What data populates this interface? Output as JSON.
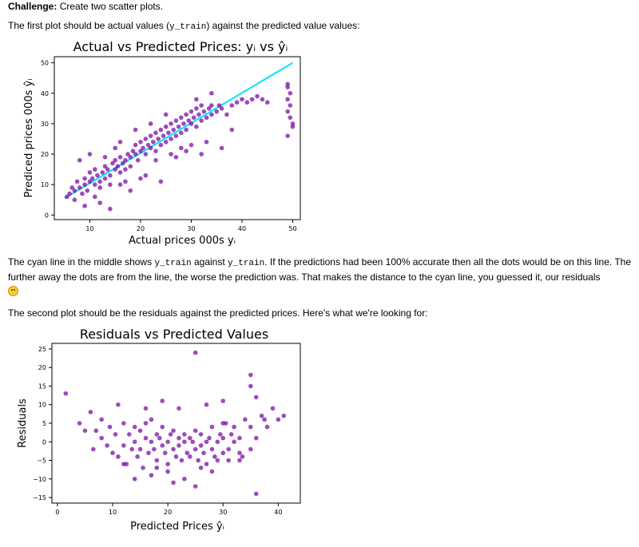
{
  "intro": {
    "challenge_label": "Challenge:",
    "challenge_text": "Create two scatter plots.",
    "first_plot_pre": "The first plot should be actual values (",
    "first_plot_code": "y_train",
    "first_plot_post": ") against the predicted value values:"
  },
  "explanation": {
    "t1": "The cyan line in the middle shows ",
    "c1": "y_train",
    "t2": " against ",
    "c2": "y_train",
    "t3": ". If the predictions had been 100% accurate then all the dots would be on this line. The further away the dots are from the line, the worse the prediction was. That makes the distance to the cyan line, you guessed it, our residuals",
    "emoji": "smiling-face-icon"
  },
  "second_intro": "The second plot should be the residuals against the predicted prices. Here's what we're looking for:",
  "colors": {
    "points": "#7b0fa6",
    "line": "#00e5ff"
  },
  "chart_data": [
    {
      "type": "scatter",
      "title": "Actual vs Predicted Prices: yᵢ vs ŷᵢ",
      "xlabel": "Actual prices 000s yᵢ",
      "ylabel": "Prediced prices 000s ŷᵢ",
      "xticks": [
        10,
        20,
        30,
        40,
        50
      ],
      "yticks": [
        0,
        10,
        20,
        30,
        40,
        50
      ],
      "xlim": [
        3,
        51.5
      ],
      "ylim": [
        -1.5,
        52
      ],
      "line": {
        "x": [
          5,
          50
        ],
        "y": [
          5.5,
          50
        ]
      },
      "points": [
        [
          5.5,
          6
        ],
        [
          6,
          7
        ],
        [
          6.5,
          9
        ],
        [
          7,
          8
        ],
        [
          7,
          5
        ],
        [
          7.5,
          11
        ],
        [
          8,
          9
        ],
        [
          8.5,
          7
        ],
        [
          9,
          12
        ],
        [
          9,
          10
        ],
        [
          9.5,
          8
        ],
        [
          10,
          11
        ],
        [
          10,
          14
        ],
        [
          10.5,
          12
        ],
        [
          11,
          10
        ],
        [
          11,
          15
        ],
        [
          11.5,
          13
        ],
        [
          12,
          11
        ],
        [
          12,
          9
        ],
        [
          12.5,
          14
        ],
        [
          13,
          12
        ],
        [
          13,
          16
        ],
        [
          13.5,
          15
        ],
        [
          14,
          13
        ],
        [
          14,
          10
        ],
        [
          14.5,
          17
        ],
        [
          15,
          15
        ],
        [
          15,
          18
        ],
        [
          15.5,
          16
        ],
        [
          16,
          14
        ],
        [
          16,
          19
        ],
        [
          16.5,
          17
        ],
        [
          17,
          18
        ],
        [
          17,
          15
        ],
        [
          17.5,
          20
        ],
        [
          18,
          19
        ],
        [
          18,
          16
        ],
        [
          18.5,
          21
        ],
        [
          19,
          20
        ],
        [
          19,
          23
        ],
        [
          19.5,
          18
        ],
        [
          20,
          21
        ],
        [
          20,
          24
        ],
        [
          20.5,
          22
        ],
        [
          21,
          20
        ],
        [
          21,
          25
        ],
        [
          21.5,
          23
        ],
        [
          22,
          22
        ],
        [
          22,
          26
        ],
        [
          22.5,
          24
        ],
        [
          23,
          21
        ],
        [
          23,
          27
        ],
        [
          23.5,
          25
        ],
        [
          24,
          23
        ],
        [
          24,
          28
        ],
        [
          24.5,
          26
        ],
        [
          25,
          24
        ],
        [
          25,
          29
        ],
        [
          25.5,
          27
        ],
        [
          26,
          25
        ],
        [
          26,
          30
        ],
        [
          26.5,
          28
        ],
        [
          27,
          26
        ],
        [
          27,
          31
        ],
        [
          27.5,
          29
        ],
        [
          28,
          27
        ],
        [
          28,
          32
        ],
        [
          28.5,
          30
        ],
        [
          29,
          28
        ],
        [
          29,
          33
        ],
        [
          29.5,
          31
        ],
        [
          30,
          30
        ],
        [
          30,
          34
        ],
        [
          30.5,
          32
        ],
        [
          31,
          29
        ],
        [
          31,
          35
        ],
        [
          31.5,
          33
        ],
        [
          32,
          31
        ],
        [
          32,
          36
        ],
        [
          32.5,
          34
        ],
        [
          33,
          32
        ],
        [
          33.5,
          35
        ],
        [
          34,
          33
        ],
        [
          34,
          36
        ],
        [
          35,
          34
        ],
        [
          35.5,
          36
        ],
        [
          36,
          35
        ],
        [
          37,
          33
        ],
        [
          38,
          36
        ],
        [
          39,
          37
        ],
        [
          40,
          38
        ],
        [
          41,
          37
        ],
        [
          42,
          38
        ],
        [
          43,
          39
        ],
        [
          44,
          38
        ],
        [
          45,
          37
        ],
        [
          8,
          18
        ],
        [
          9,
          3
        ],
        [
          10,
          20
        ],
        [
          12,
          4
        ],
        [
          13,
          19
        ],
        [
          14,
          2
        ],
        [
          16,
          24
        ],
        [
          18,
          8
        ],
        [
          20,
          12
        ],
        [
          22,
          30
        ],
        [
          24,
          11
        ],
        [
          25,
          33
        ],
        [
          27,
          19
        ],
        [
          28,
          22
        ],
        [
          30,
          23
        ],
        [
          32,
          20
        ],
        [
          33,
          24
        ],
        [
          36,
          22
        ],
        [
          38,
          28
        ],
        [
          16,
          10
        ],
        [
          19,
          28
        ],
        [
          21,
          13
        ],
        [
          23,
          18
        ],
        [
          26,
          20
        ],
        [
          29,
          21
        ],
        [
          31,
          38
        ],
        [
          34,
          40
        ],
        [
          15,
          22
        ],
        [
          17,
          11
        ],
        [
          11,
          6
        ],
        [
          49,
          43
        ],
        [
          49,
          42
        ],
        [
          49.5,
          40
        ],
        [
          49,
          38
        ],
        [
          49.5,
          36
        ],
        [
          49,
          34
        ],
        [
          49.5,
          32
        ],
        [
          50,
          30
        ],
        [
          49,
          26
        ],
        [
          50,
          29
        ]
      ]
    },
    {
      "type": "scatter",
      "title": "Residuals vs Predicted Values",
      "xlabel": "Predicted Prices ŷᵢ",
      "ylabel": "Residuals",
      "xticks": [
        0,
        10,
        20,
        30,
        40
      ],
      "yticks": [
        25,
        20,
        15,
        10,
        5,
        0,
        -5,
        -10,
        -15
      ],
      "xlim": [
        -1,
        44
      ],
      "ylim": [
        -16.5,
        26.5
      ],
      "points": [
        [
          1.5,
          13
        ],
        [
          4,
          5
        ],
        [
          5,
          3
        ],
        [
          6,
          8
        ],
        [
          6.5,
          -2
        ],
        [
          7,
          3
        ],
        [
          8,
          6
        ],
        [
          8,
          1
        ],
        [
          9,
          -1
        ],
        [
          9.5,
          4
        ],
        [
          10,
          -3
        ],
        [
          10.5,
          2
        ],
        [
          11,
          10
        ],
        [
          11,
          -4
        ],
        [
          12,
          5
        ],
        [
          12,
          -1
        ],
        [
          12.5,
          -6
        ],
        [
          13,
          2
        ],
        [
          13.5,
          -2
        ],
        [
          14,
          4
        ],
        [
          14,
          0
        ],
        [
          14.5,
          -4
        ],
        [
          15,
          3
        ],
        [
          15,
          -2
        ],
        [
          15.5,
          -7
        ],
        [
          16,
          1
        ],
        [
          16,
          5
        ],
        [
          16.5,
          -3
        ],
        [
          17,
          0
        ],
        [
          17,
          6
        ],
        [
          17.5,
          -2
        ],
        [
          18,
          2
        ],
        [
          18,
          -5
        ],
        [
          18.5,
          1
        ],
        [
          19,
          -1
        ],
        [
          19,
          4
        ],
        [
          19.5,
          -3
        ],
        [
          20,
          0
        ],
        [
          20,
          -6
        ],
        [
          20.5,
          2
        ],
        [
          21,
          -2
        ],
        [
          21,
          3
        ],
        [
          21.5,
          -4
        ],
        [
          22,
          1
        ],
        [
          22,
          -1
        ],
        [
          22.5,
          -5
        ],
        [
          23,
          0
        ],
        [
          23,
          2
        ],
        [
          23.5,
          -3
        ],
        [
          24,
          1
        ],
        [
          24,
          -4
        ],
        [
          24.5,
          0
        ],
        [
          25,
          -2
        ],
        [
          25,
          3
        ],
        [
          25.5,
          -5
        ],
        [
          26,
          -1
        ],
        [
          26,
          2
        ],
        [
          26.5,
          -3
        ],
        [
          27,
          -6
        ],
        [
          27,
          0
        ],
        [
          27.5,
          1
        ],
        [
          28,
          -2
        ],
        [
          28,
          4
        ],
        [
          28.5,
          -4
        ],
        [
          29,
          0
        ],
        [
          29,
          -5
        ],
        [
          29.5,
          2
        ],
        [
          30,
          -3
        ],
        [
          30,
          1
        ],
        [
          30.5,
          5
        ],
        [
          31,
          -2
        ],
        [
          31,
          -5
        ],
        [
          31.5,
          2
        ],
        [
          32,
          0
        ],
        [
          32,
          4
        ],
        [
          33,
          -3
        ],
        [
          33,
          1
        ],
        [
          33.5,
          -4
        ],
        [
          34,
          6
        ],
        [
          35,
          4
        ],
        [
          35,
          -2
        ],
        [
          36,
          1
        ],
        [
          37,
          7
        ],
        [
          37.5,
          6
        ],
        [
          39,
          9
        ],
        [
          40,
          6
        ],
        [
          41,
          7
        ],
        [
          36,
          12
        ],
        [
          35,
          18
        ],
        [
          30,
          5
        ],
        [
          27,
          10
        ],
        [
          19,
          11
        ],
        [
          16,
          9
        ],
        [
          22,
          9
        ],
        [
          14,
          -10
        ],
        [
          21,
          -11
        ],
        [
          25,
          -12
        ],
        [
          36,
          -14
        ],
        [
          25,
          24
        ],
        [
          35,
          15
        ],
        [
          30,
          11
        ],
        [
          28,
          -8
        ],
        [
          18,
          -7
        ],
        [
          12,
          -6
        ],
        [
          26,
          -7
        ],
        [
          33,
          -5
        ],
        [
          17,
          -9
        ],
        [
          20,
          -8
        ],
        [
          23,
          -10
        ],
        [
          38,
          4
        ]
      ]
    }
  ]
}
